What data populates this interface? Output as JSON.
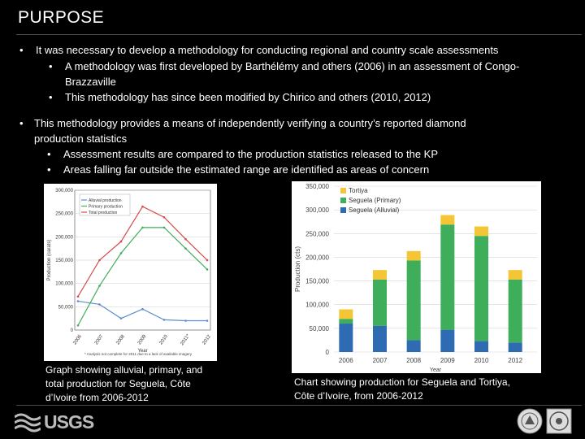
{
  "slide": {
    "title": "PURPOSE",
    "bullets": [
      {
        "text": "It was necessary to develop a methodology for conducting regional and country scale assessments",
        "sub": [
          "A methodology was first developed by Barthélémy and others (2006) in an assessment of Congo-",
          "Brazzaville",
          "This methodology has since been modified by Chirico and others (2010, 2012)"
        ]
      },
      {
        "text_line1": "This methodology provides a means of independently verifying a country’s reported diamond",
        "text_line2": "production statistics",
        "sub": [
          "Assessment results are compared to the production statistics released to the KP",
          "Areas falling far outside the estimated range are identified as areas of concern"
        ]
      }
    ],
    "bullet_glyph": "•"
  },
  "captions": {
    "left": [
      "Graph showing alluvial, primary, and",
      "total production for Seguela, Côte",
      "d’Ivoire from 2006-2012"
    ],
    "right": [
      "Chart showing production for Seguela and Tortiya,",
      "Côte d’Ivoire, from 2006-2012"
    ]
  },
  "footer": {
    "logo_text": "USGS"
  },
  "chart_data": [
    {
      "type": "line",
      "title": "",
      "xlabel": "Year",
      "ylabel": "Production (carats)",
      "x": [
        "2006",
        "2007",
        "2008",
        "2009",
        "2010",
        "2011*",
        "2012"
      ],
      "ylim": [
        0,
        300000
      ],
      "yticks": [
        "0",
        "50,000",
        "100,000",
        "150,000",
        "200,000",
        "250,000",
        "300,000"
      ],
      "series": [
        {
          "name": "Alluvial production",
          "color": "#5b8ecf",
          "values": [
            62000,
            55000,
            25000,
            45000,
            22000,
            20000,
            20000
          ]
        },
        {
          "name": "Primary production",
          "color": "#3fae5a",
          "values": [
            10000,
            95000,
            165000,
            220000,
            220000,
            175000,
            130000
          ]
        },
        {
          "name": "Total production",
          "color": "#d64b4b",
          "values": [
            72000,
            150000,
            190000,
            265000,
            242000,
            195000,
            150000
          ]
        }
      ],
      "footnote": "* Analysis not complete for 2011 due to a lack of available imagery"
    },
    {
      "type": "bar",
      "title": "",
      "xlabel": "Year",
      "ylabel": "Production (cts)",
      "categories": [
        "2006",
        "2007",
        "2008",
        "2009",
        "2010",
        "2012"
      ],
      "ylim": [
        0,
        350000
      ],
      "yticks": [
        "0",
        "50,000",
        "100,000",
        "150,000",
        "200,000",
        "250,000",
        "300,000",
        "350,000"
      ],
      "series": [
        {
          "name": "Seguela (Alluvial)",
          "color": "#2f6bb3",
          "values": [
            60000,
            55000,
            25000,
            47000,
            23000,
            20000
          ]
        },
        {
          "name": "Seguela (Primary)",
          "color": "#3fae5a",
          "values": [
            10000,
            98000,
            168000,
            222000,
            222000,
            133000
          ]
        },
        {
          "name": "Tortiya",
          "color": "#f4c534",
          "values": [
            20000,
            20000,
            20000,
            20000,
            20000,
            20000
          ]
        }
      ],
      "legend": [
        "Tortiya",
        "Seguela (Primary)",
        "Seguela (Alluvial)"
      ]
    }
  ]
}
